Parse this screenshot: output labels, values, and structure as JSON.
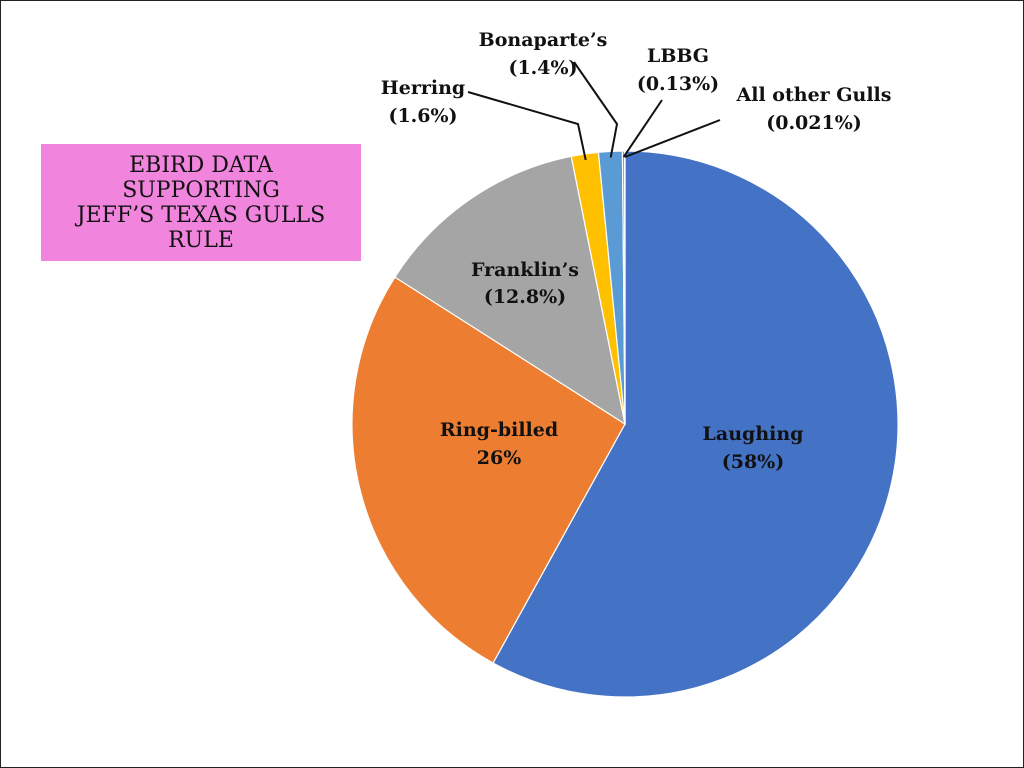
{
  "title_lines": [
    "EBIRD DATA",
    "SUPPORTING",
    "JEFF’S TEXAS GULLS",
    "RULE"
  ],
  "chart_data": {
    "type": "pie",
    "title": "EBIRD DATA SUPPORTING JEFF’S TEXAS GULLS RULE",
    "slices": [
      {
        "name": "Laughing",
        "pct_label": "(58%)",
        "value": 58.0,
        "color": "#4472c4"
      },
      {
        "name": "Ring-billed",
        "pct_label": "26%",
        "value": 26.0,
        "color": "#ed7d31"
      },
      {
        "name": "Franklin’s",
        "pct_label": "(12.8%)",
        "value": 12.8,
        "color": "#a5a5a5"
      },
      {
        "name": "Herring",
        "pct_label": "(1.6%)",
        "value": 1.6,
        "color": "#ffc000"
      },
      {
        "name": "Bonaparte’s",
        "pct_label": "(1.4%)",
        "value": 1.4,
        "color": "#5b9bd5"
      },
      {
        "name": "LBBG",
        "pct_label": "(0.13%)",
        "value": 0.13,
        "color": "#70ad47"
      },
      {
        "name": "All other Gulls",
        "pct_label": "(0.021%)",
        "value": 0.021,
        "color": "#264478"
      }
    ]
  }
}
